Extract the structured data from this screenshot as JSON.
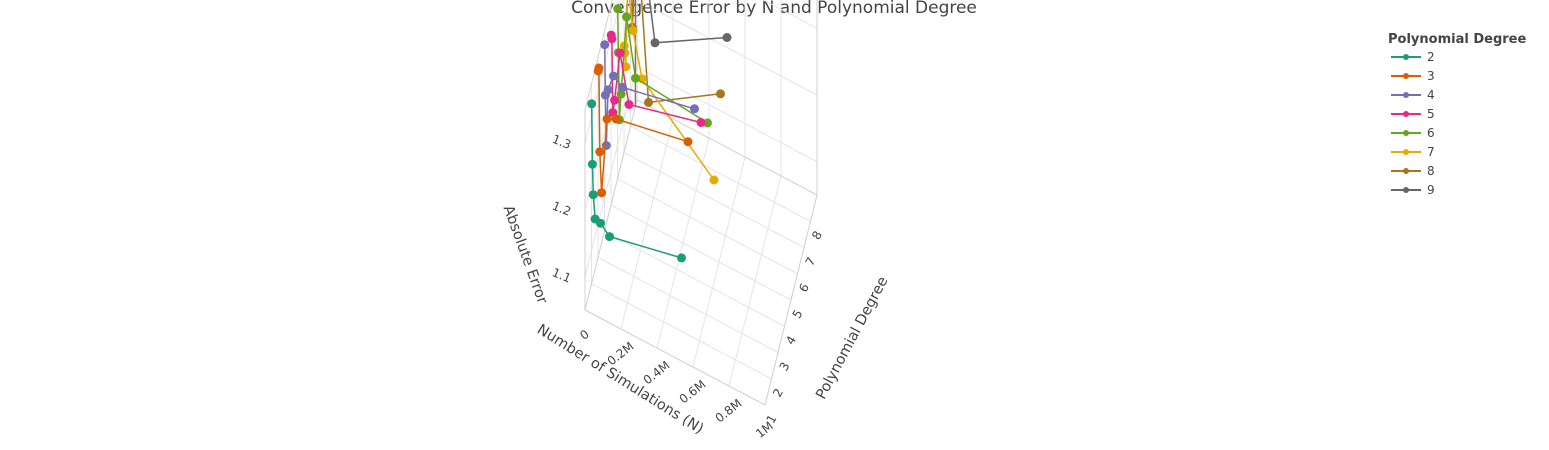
{
  "chart_data": {
    "type": "line3d",
    "title": "Convergence Error by N and Polynomial Degree",
    "x_axis": {
      "title": "Number of Simulations (N)",
      "range": [
        0,
        1000000
      ],
      "ticks": [
        0,
        200000,
        400000,
        600000,
        800000,
        1000000
      ],
      "tick_labels": [
        "0",
        "0.2M",
        "0.4M",
        "0.6M",
        "0.8M",
        "1M"
      ]
    },
    "y_axis": {
      "title": "Polynomial Degree",
      "range": [
        1,
        9
      ],
      "ticks": [
        1,
        2,
        3,
        4,
        5,
        6,
        7,
        8
      ],
      "tick_labels": [
        "1",
        "2",
        "3",
        "4",
        "5",
        "6",
        "7",
        "8"
      ]
    },
    "z_axis": {
      "title": "Absolute Error",
      "range": [
        1.05,
        1.35
      ],
      "ticks": [
        1.1,
        1.2,
        1.3
      ],
      "tick_labels": [
        "1.1",
        "1.2",
        "1.3"
      ]
    },
    "legend": {
      "title": "Polynomial Degree",
      "position": "top-right"
    },
    "x": [
      1000,
      5000,
      10000,
      20000,
      50000,
      100000,
      500000
    ],
    "series": [
      {
        "name": "2",
        "degree": 2,
        "color": "#1b9e77",
        "values": [
          1.32,
          1.23,
          1.185,
          1.15,
          1.148,
          1.135,
          1.16
        ]
      },
      {
        "name": "3",
        "degree": 3,
        "color": "#d95f02",
        "values": [
          1.33,
          1.335,
          1.21,
          1.15,
          1.265,
          1.272,
          1.295
        ]
      },
      {
        "name": "4",
        "degree": 4,
        "color": "#7570b3",
        "values": [
          1.33,
          1.255,
          1.18,
          1.265,
          1.29,
          1.28,
          1.305
        ]
      },
      {
        "name": "5",
        "degree": 5,
        "color": "#e7298a",
        "values": [
          1.305,
          1.3,
          1.19,
          1.21,
          1.285,
          1.215,
          1.245
        ]
      },
      {
        "name": "6",
        "degree": 6,
        "color": "#66a61e",
        "values": [
          1.305,
          1.24,
          1.14,
          1.18,
          1.3,
          1.215,
          1.205
        ]
      },
      {
        "name": "7",
        "degree": 7,
        "color": "#e6ab02",
        "values": [
          1.21,
          1.2,
          1.18,
          1.305,
          1.24,
          1.175,
          1.08
        ]
      },
      {
        "name": "8",
        "degree": 8,
        "color": "#a6761d",
        "values": [
          1.29,
          1.295,
          1.2,
          1.255,
          1.295,
          1.1,
          1.17
        ]
      },
      {
        "name": "9",
        "degree": 9,
        "color": "#666666",
        "values": [
          1.36,
          1.23,
          1.29,
          1.31,
          1.25,
          1.15,
          1.215
        ]
      }
    ]
  }
}
